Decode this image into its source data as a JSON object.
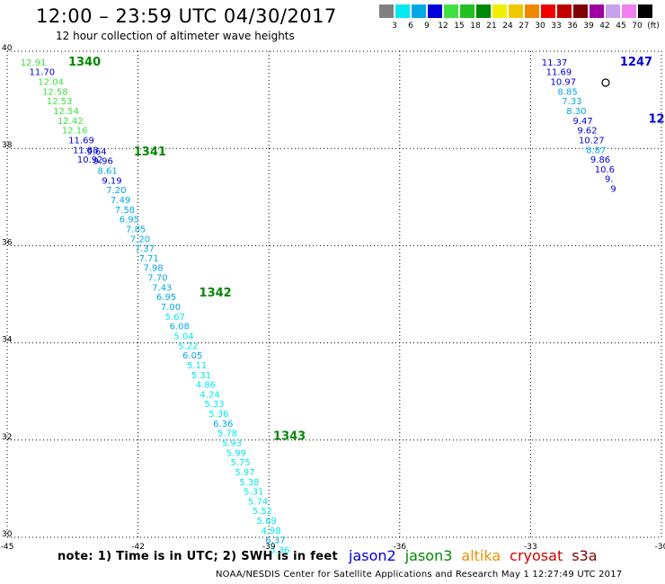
{
  "header": {
    "title": "12:00 – 23:59 UTC 04/30/2017",
    "subtitle": "12 hour collection of altimeter wave heights"
  },
  "colorbar": {
    "labels": [
      "3",
      "6",
      "9",
      "12",
      "15",
      "18",
      "21",
      "24",
      "27",
      "30",
      "33",
      "36",
      "39",
      "42",
      "45",
      "70",
      "(ft)"
    ],
    "colors": [
      "#808080",
      "#00e8f0",
      "#00a8e8",
      "#0000d8",
      "#40e040",
      "#20c020",
      "#008800",
      "#f0f000",
      "#f0c800",
      "#f08800",
      "#f00000",
      "#c00000",
      "#800000",
      "#a000a0",
      "#c8a0f0",
      "#f080f0",
      "#000000"
    ]
  },
  "footer": {
    "note": "note:  1) Time is in UTC;  2) SWH is in feet",
    "satellites": [
      {
        "name": "jason2",
        "color": "#0000d8"
      },
      {
        "name": "jason3",
        "color": "#008800"
      },
      {
        "name": "altika",
        "color": "#f09000"
      },
      {
        "name": "cryosat",
        "color": "#d00000"
      },
      {
        "name": "s3a",
        "color": "#800000"
      }
    ],
    "credit": "NOAA/NESDIS Center for Satellite Applications and Research     May  1 12:27:49 UTC 2017"
  },
  "chart_data": {
    "type": "scatter",
    "xlim": [
      -45,
      -30
    ],
    "ylim": [
      30,
      40
    ],
    "x_ticks": [
      "-45",
      "-42",
      "-39",
      "-36",
      "-33",
      "-30"
    ],
    "y_ticks": [
      "30",
      "32",
      "34",
      "36",
      "38",
      "40"
    ],
    "grid": true,
    "tracks": [
      {
        "label": "1340",
        "label_color": "#008800",
        "label_x": -43.6,
        "label_y": 39.8,
        "points": [
          {
            "x": -44.4,
            "y": 39.78,
            "v": "12.91",
            "c": "#40e040"
          },
          {
            "x": -44.2,
            "y": 39.58,
            "v": "11.70",
            "c": "#0000d8"
          },
          {
            "x": -44.0,
            "y": 39.38,
            "v": "12.04",
            "c": "#40e040"
          },
          {
            "x": -43.9,
            "y": 39.18,
            "v": "12.58",
            "c": "#40e040"
          },
          {
            "x": -43.8,
            "y": 38.98,
            "v": "12.53",
            "c": "#40e040"
          },
          {
            "x": -43.65,
            "y": 38.78,
            "v": "12.54",
            "c": "#40e040"
          },
          {
            "x": -43.55,
            "y": 38.58,
            "v": "12.42",
            "c": "#40e040"
          },
          {
            "x": -43.45,
            "y": 38.38,
            "v": "12.16",
            "c": "#40e040"
          },
          {
            "x": -43.3,
            "y": 38.18,
            "v": "11.69",
            "c": "#0000d8"
          },
          {
            "x": -43.2,
            "y": 37.98,
            "v": "11.88",
            "c": "#0000d8"
          },
          {
            "x": -43.1,
            "y": 37.78,
            "v": "10.92",
            "c": "#0000d8"
          }
        ]
      },
      {
        "label": "1341",
        "label_color": "#008800",
        "label_x": -42.1,
        "label_y": 37.95,
        "points": [
          {
            "x": -42.95,
            "y": 37.95,
            "v": "9.64",
            "c": "#0000d8"
          },
          {
            "x": -42.8,
            "y": 37.75,
            "v": "9.96",
            "c": "#0000d8"
          },
          {
            "x": -42.7,
            "y": 37.55,
            "v": "8.61",
            "c": "#00a8e8"
          },
          {
            "x": -42.6,
            "y": 37.35,
            "v": "9.19",
            "c": "#0000d8"
          },
          {
            "x": -42.5,
            "y": 37.15,
            "v": "7.20",
            "c": "#00a8e8"
          },
          {
            "x": -42.4,
            "y": 36.95,
            "v": "7.49",
            "c": "#00a8e8"
          },
          {
            "x": -42.3,
            "y": 36.75,
            "v": "7.58",
            "c": "#00a8e8"
          },
          {
            "x": -42.2,
            "y": 36.55,
            "v": "6.95",
            "c": "#00a8e8"
          },
          {
            "x": -42.05,
            "y": 36.35,
            "v": "7.85",
            "c": "#00a8e8"
          },
          {
            "x": -41.95,
            "y": 36.15,
            "v": "7.20",
            "c": "#00a8e8"
          },
          {
            "x": -41.85,
            "y": 35.95,
            "v": "7.37",
            "c": "#00a8e8"
          },
          {
            "x": -41.75,
            "y": 35.75,
            "v": "7.71",
            "c": "#00a8e8"
          },
          {
            "x": -41.65,
            "y": 35.55,
            "v": "7.98",
            "c": "#00a8e8"
          },
          {
            "x": -41.55,
            "y": 35.35,
            "v": "7.70",
            "c": "#00a8e8"
          },
          {
            "x": -41.45,
            "y": 35.15,
            "v": "7.43",
            "c": "#00a8e8"
          }
        ]
      },
      {
        "label": "1342",
        "label_color": "#008800",
        "label_x": -40.6,
        "label_y": 35.05,
        "points": [
          {
            "x": -41.35,
            "y": 34.95,
            "v": "6.95",
            "c": "#00a8e8"
          },
          {
            "x": -41.25,
            "y": 34.75,
            "v": "7.00",
            "c": "#00a8e8"
          },
          {
            "x": -41.15,
            "y": 34.55,
            "v": "5.67",
            "c": "#00e8f0"
          },
          {
            "x": -41.05,
            "y": 34.35,
            "v": "6.08",
            "c": "#00a8e8"
          },
          {
            "x": -40.95,
            "y": 34.15,
            "v": "5.04",
            "c": "#00e8f0"
          },
          {
            "x": -40.85,
            "y": 33.95,
            "v": "5.22",
            "c": "#00e8f0"
          },
          {
            "x": -40.75,
            "y": 33.75,
            "v": "6.05",
            "c": "#00a8e8"
          },
          {
            "x": -40.65,
            "y": 33.55,
            "v": "5.11",
            "c": "#00e8f0"
          },
          {
            "x": -40.55,
            "y": 33.35,
            "v": "5.31",
            "c": "#00e8f0"
          },
          {
            "x": -40.45,
            "y": 33.15,
            "v": "4.86",
            "c": "#00e8f0"
          },
          {
            "x": -40.35,
            "y": 32.95,
            "v": "4.24",
            "c": "#00e8f0"
          },
          {
            "x": -40.25,
            "y": 32.75,
            "v": "5.33",
            "c": "#00e8f0"
          },
          {
            "x": -40.15,
            "y": 32.55,
            "v": "5.36",
            "c": "#00e8f0"
          },
          {
            "x": -40.05,
            "y": 32.35,
            "v": "6.36",
            "c": "#00a8e8"
          },
          {
            "x": -39.95,
            "y": 32.15,
            "v": "5.78",
            "c": "#00e8f0"
          }
        ]
      },
      {
        "label": "1343",
        "label_color": "#008800",
        "label_x": -38.9,
        "label_y": 32.1,
        "points": [
          {
            "x": -39.85,
            "y": 31.95,
            "v": "5.93",
            "c": "#00e8f0"
          },
          {
            "x": -39.75,
            "y": 31.75,
            "v": "5.99",
            "c": "#00e8f0"
          },
          {
            "x": -39.65,
            "y": 31.55,
            "v": "5.75",
            "c": "#00e8f0"
          },
          {
            "x": -39.55,
            "y": 31.35,
            "v": "5.97",
            "c": "#00e8f0"
          },
          {
            "x": -39.45,
            "y": 31.15,
            "v": "5.38",
            "c": "#00e8f0"
          },
          {
            "x": -39.35,
            "y": 30.95,
            "v": "5.31",
            "c": "#00e8f0"
          },
          {
            "x": -39.25,
            "y": 30.75,
            "v": "5.74",
            "c": "#00e8f0"
          },
          {
            "x": -39.15,
            "y": 30.55,
            "v": "5.52",
            "c": "#00e8f0"
          },
          {
            "x": -39.05,
            "y": 30.35,
            "v": "5.69",
            "c": "#00e8f0"
          },
          {
            "x": -38.95,
            "y": 30.15,
            "v": "4.98",
            "c": "#00e8f0"
          },
          {
            "x": -38.85,
            "y": 29.95,
            "v": "6.37",
            "c": "#00a8e8"
          },
          {
            "x": -38.75,
            "y": 29.75,
            "v": "5.36",
            "c": "#00e8f0"
          }
        ]
      },
      {
        "label": "1247",
        "label_color": "#0000d8",
        "label_x": -30.95,
        "label_y": 39.8,
        "points": [
          {
            "x": -32.45,
            "y": 39.78,
            "v": "11.37",
            "c": "#0000d8"
          },
          {
            "x": -32.35,
            "y": 39.58,
            "v": "11.69",
            "c": "#0000d8"
          },
          {
            "x": -32.25,
            "y": 39.38,
            "v": "10.97",
            "c": "#0000d8"
          },
          {
            "x": -32.15,
            "y": 39.18,
            "v": "8.85",
            "c": "#00a8e8"
          },
          {
            "x": -32.05,
            "y": 38.98,
            "v": "7.33",
            "c": "#00a8e8"
          },
          {
            "x": -31.95,
            "y": 38.78,
            "v": "8.30",
            "c": "#00a8e8"
          },
          {
            "x": -31.8,
            "y": 38.58,
            "v": "9.47",
            "c": "#0000d8"
          },
          {
            "x": -31.7,
            "y": 38.38,
            "v": "9.62",
            "c": "#0000d8"
          },
          {
            "x": -31.6,
            "y": 38.18,
            "v": "10.27",
            "c": "#0000d8"
          },
          {
            "x": -31.5,
            "y": 37.98,
            "v": "8.87",
            "c": "#00a8e8"
          },
          {
            "x": -31.4,
            "y": 37.78,
            "v": "9.86",
            "c": "#0000d8"
          },
          {
            "x": -31.3,
            "y": 37.58,
            "v": "10.6",
            "c": "#0000d8"
          },
          {
            "x": -31.2,
            "y": 37.38,
            "v": "9.",
            "c": "#0000d8"
          },
          {
            "x": -31.1,
            "y": 37.18,
            "v": "9",
            "c": "#0000d8"
          }
        ]
      },
      {
        "label": "12",
        "label_color": "#0000d8",
        "label_x": -30.3,
        "label_y": 38.62,
        "points": []
      }
    ]
  }
}
